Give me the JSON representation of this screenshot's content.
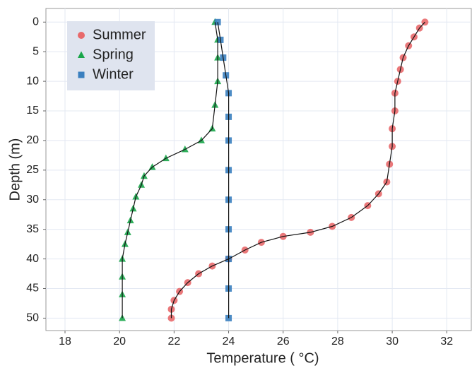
{
  "chart_data": {
    "type": "scatter",
    "x_label": "Temperature ( °C)",
    "y_label": "Depth (m)",
    "xlim": [
      17.3,
      32.9
    ],
    "ylim": [
      -2.3,
      52.1
    ],
    "y_reversed": true,
    "xticks": [
      18,
      20,
      22,
      24,
      26,
      28,
      30,
      32
    ],
    "yticks": [
      0,
      5,
      10,
      15,
      20,
      25,
      30,
      35,
      40,
      45,
      50
    ],
    "grid": true,
    "trend_line": true,
    "legend": "upper left",
    "series": [
      {
        "name": "Summer",
        "color": "#e8696b",
        "marker": "circle",
        "x": [
          31.2,
          31.0,
          30.8,
          30.6,
          30.4,
          30.3,
          30.2,
          30.1,
          30.1,
          30.0,
          30.0,
          29.9,
          29.8,
          29.5,
          29.1,
          28.5,
          27.8,
          27.0,
          26.0,
          25.2,
          24.6,
          24.0,
          23.4,
          22.9,
          22.5,
          22.2,
          22.0,
          21.9,
          21.9
        ],
        "values": [
          0,
          1,
          2.5,
          4,
          6,
          8,
          10,
          12,
          15,
          18,
          21,
          24,
          27,
          29,
          31,
          33,
          34.5,
          35.5,
          36.2,
          37.2,
          38.5,
          40,
          41.2,
          42.5,
          44,
          45.5,
          47,
          48.5,
          50
        ]
      },
      {
        "name": "Spring",
        "color": "#1aa64a",
        "marker": "triangle",
        "x": [
          23.5,
          23.6,
          23.6,
          23.6,
          23.5,
          23.4,
          23.0,
          22.4,
          21.7,
          21.2,
          20.9,
          20.8,
          20.6,
          20.5,
          20.4,
          20.3,
          20.2,
          20.1,
          20.1,
          20.1,
          20.1
        ],
        "values": [
          0,
          3,
          6,
          10,
          14,
          18,
          20,
          21.5,
          23,
          24.5,
          26,
          27.5,
          29.5,
          31.5,
          33.5,
          35.5,
          37.5,
          40,
          43,
          46,
          50
        ]
      },
      {
        "name": "Winter",
        "color": "#3a7fbf",
        "marker": "square",
        "x": [
          23.6,
          23.7,
          23.8,
          23.9,
          24.0,
          24.0,
          24.0,
          24.0,
          24.0,
          24.0,
          24.0,
          24.0,
          24.0
        ],
        "values": [
          0,
          3,
          6,
          9,
          12,
          16,
          20,
          25,
          30,
          35,
          40,
          45,
          50
        ]
      }
    ]
  }
}
